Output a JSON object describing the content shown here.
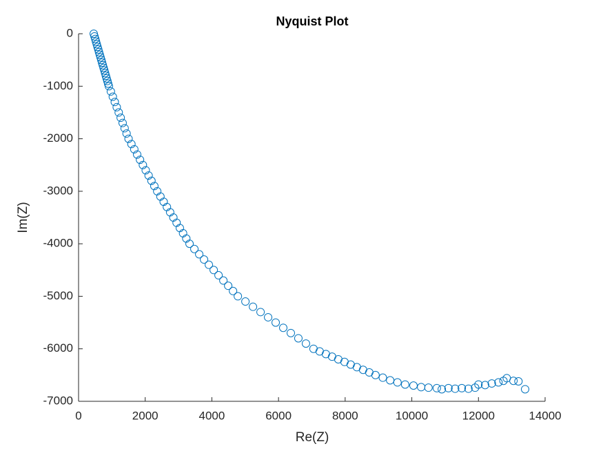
{
  "chart_data": {
    "type": "scatter",
    "title": "Nyquist Plot",
    "x_label": "Re(Z)",
    "y_label": "Im(Z)",
    "color": "#0072BD",
    "marker": "open-circle",
    "xlim": [
      0,
      14000
    ],
    "xticks": [
      0,
      2000,
      4000,
      6000,
      8000,
      10000,
      12000,
      14000
    ],
    "ylim": [
      -7000,
      0
    ],
    "yticks": [
      -7000,
      -6000,
      -5000,
      -4000,
      -3000,
      -2000,
      -1000,
      0
    ],
    "x": [
      455,
      478,
      501,
      523,
      546,
      569,
      592,
      614,
      637,
      660,
      683,
      705,
      728,
      751,
      774,
      796,
      819,
      842,
      865,
      887,
      910,
      969,
      1028,
      1087,
      1146,
      1205,
      1264,
      1323,
      1382,
      1441,
      1500,
      1586,
      1672,
      1758,
      1844,
      1930,
      2016,
      2102,
      2188,
      2274,
      2360,
      2457,
      2554,
      2651,
      2748,
      2845,
      2942,
      3039,
      3136,
      3233,
      3330,
      3475,
      3620,
      3765,
      3910,
      4055,
      4200,
      4345,
      4490,
      4635,
      4780,
      5007,
      5234,
      5461,
      5688,
      5915,
      6142,
      6369,
      6596,
      6823,
      7050,
      7236,
      7422,
      7608,
      7794,
      7980,
      8166,
      8352,
      8538,
      8724,
      8910,
      9130,
      9350,
      9570,
      9800,
      10050,
      10280,
      10500,
      10750,
      10900,
      11100,
      11300,
      11500,
      11700,
      11900,
      12000,
      12200,
      12400,
      12600,
      12750,
      12850,
      13050,
      13200,
      13400
    ],
    "y": [
      0,
      -50,
      -100,
      -150,
      -200,
      -250,
      -300,
      -350,
      -400,
      -450,
      -500,
      -550,
      -600,
      -650,
      -700,
      -750,
      -800,
      -850,
      -900,
      -950,
      -1000,
      -1100,
      -1200,
      -1300,
      -1400,
      -1500,
      -1600,
      -1700,
      -1800,
      -1900,
      -2000,
      -2100,
      -2200,
      -2300,
      -2400,
      -2500,
      -2600,
      -2700,
      -2800,
      -2900,
      -3000,
      -3100,
      -3200,
      -3300,
      -3400,
      -3500,
      -3600,
      -3700,
      -3800,
      -3900,
      -4000,
      -4100,
      -4200,
      -4300,
      -4400,
      -4500,
      -4600,
      -4700,
      -4800,
      -4900,
      -5000,
      -5100,
      -5200,
      -5300,
      -5400,
      -5500,
      -5600,
      -5700,
      -5800,
      -5900,
      -6000,
      -6050,
      -6100,
      -6150,
      -6200,
      -6250,
      -6300,
      -6350,
      -6400,
      -6450,
      -6500,
      -6550,
      -6600,
      -6640,
      -6680,
      -6700,
      -6730,
      -6740,
      -6750,
      -6770,
      -6750,
      -6760,
      -6750,
      -6760,
      -6740,
      -6680,
      -6690,
      -6660,
      -6640,
      -6610,
      -6560,
      -6610,
      -6620,
      -6770
    ]
  }
}
